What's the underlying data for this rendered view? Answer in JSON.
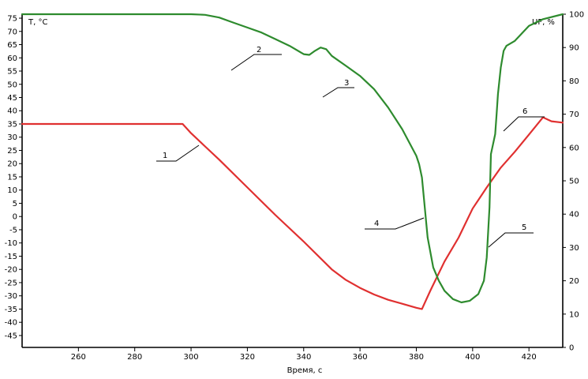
{
  "chart_data": {
    "type": "line",
    "title": "",
    "xlabel": "Время, с",
    "ylabel_left": "T, °C",
    "ylabel_right": "UF, %",
    "xlim": [
      240,
      432
    ],
    "ylim_left": [
      -49.5,
      76.5
    ],
    "ylim_right": [
      0,
      100
    ],
    "x_ticks": [
      260,
      280,
      300,
      320,
      340,
      360,
      380,
      400,
      420
    ],
    "y_left_ticks": [
      75,
      70,
      65,
      60,
      55,
      50,
      45,
      40,
      35,
      30,
      25,
      20,
      15,
      10,
      5,
      0,
      -5,
      -10,
      -15,
      -20,
      -25,
      -30,
      -35,
      -40,
      -45
    ],
    "y_right_ticks": [
      100,
      90,
      80,
      70,
      60,
      50,
      40,
      30,
      20,
      10,
      0
    ],
    "grid": false,
    "series": [
      {
        "axis": "left",
        "color": "#e03030",
        "x": [
          240,
          297,
          300,
          305,
          310,
          320,
          330,
          340,
          350,
          355,
          360,
          365,
          370,
          375,
          380,
          382,
          385,
          390,
          395,
          400,
          405,
          410,
          415,
          420,
          425,
          428,
          432
        ],
        "values": [
          35,
          35,
          31.5,
          26.5,
          21.5,
          11,
          0.5,
          -9.5,
          -20,
          -24,
          -27,
          -29.5,
          -31.5,
          -33,
          -34.5,
          -35,
          -28,
          -17,
          -8,
          3,
          11,
          18.5,
          24.5,
          31,
          37.5,
          36,
          35.5
        ]
      },
      {
        "axis": "right",
        "color": "#2e8b2e",
        "x": [
          240,
          260,
          280,
          300,
          305,
          310,
          315,
          320,
          325,
          330,
          335,
          340,
          342,
          344,
          346,
          348,
          350,
          355,
          360,
          365,
          370,
          375,
          380,
          381,
          382,
          383,
          384,
          386,
          388,
          390,
          393,
          396,
          399,
          402,
          404,
          405,
          406,
          406.5,
          407,
          407.5,
          408,
          408.5,
          409,
          410,
          411,
          412,
          415,
          420,
          425,
          432
        ],
        "values": [
          100,
          100,
          100,
          100,
          99.8,
          99,
          97.5,
          96,
          94.5,
          92.5,
          90.5,
          88,
          87.8,
          89,
          90,
          89.5,
          87.5,
          84.5,
          81.5,
          77.5,
          72,
          65.5,
          57.5,
          55,
          51,
          42,
          33,
          24,
          20,
          17,
          14.5,
          13.5,
          14,
          16,
          20,
          27,
          42,
          58,
          60,
          62,
          64,
          70,
          76,
          84,
          89,
          90.5,
          92,
          96.5,
          98.5,
          100
        ]
      }
    ],
    "annotations": [
      "1",
      "2",
      "3",
      "4",
      "5",
      "6"
    ]
  },
  "ui": {
    "axis_color": "#000000",
    "background": "#ffffff"
  }
}
